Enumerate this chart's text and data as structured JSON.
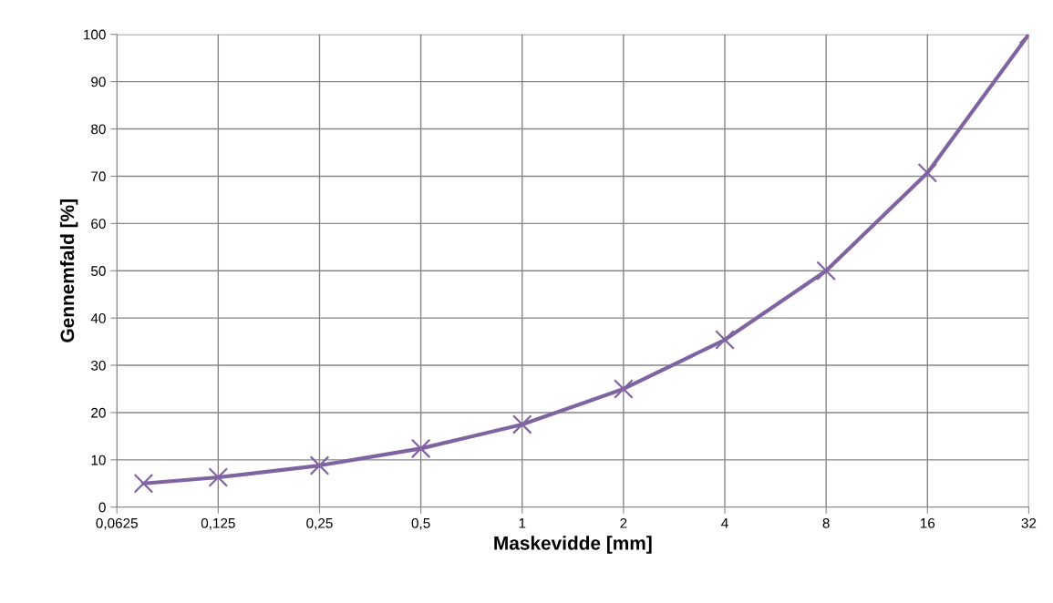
{
  "chart_data": {
    "type": "line",
    "xlabel": "Maskevidde [mm]",
    "ylabel": "Gennemfald [%]",
    "x": [
      0.075,
      0.125,
      0.25,
      0.5,
      1,
      2,
      4,
      8,
      16,
      32
    ],
    "series": [
      {
        "color": "#8064a2",
        "values": [
          5,
          6.3,
          8.8,
          12.4,
          17.5,
          25,
          35.4,
          50,
          70.7,
          100
        ]
      }
    ],
    "log": "x",
    "xlim": [
      0.0625,
      32
    ],
    "xticks": [
      {
        "value": 0.0625,
        "label": "0,0625"
      },
      {
        "value": 0.125,
        "label": "0,125"
      },
      {
        "value": 0.25,
        "label": "0,25"
      },
      {
        "value": 0.5,
        "label": "0,5"
      },
      1,
      2,
      4,
      8,
      16,
      32
    ],
    "ylim": [
      0,
      100
    ],
    "yticks": [
      0,
      10,
      20,
      30,
      40,
      50,
      60,
      70,
      80,
      90,
      100
    ],
    "grid": true,
    "marker": "cross",
    "line_style": "solid",
    "legend": false
  }
}
